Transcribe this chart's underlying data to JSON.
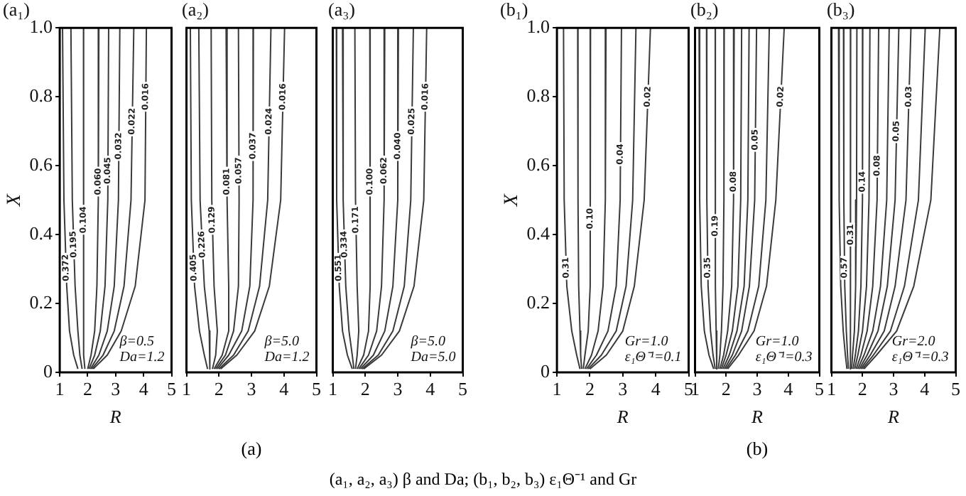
{
  "chart_data": [
    {
      "type": "line",
      "title": "(a₁)",
      "xlabel": "R",
      "ylabel": "X",
      "xlim": [
        1,
        5
      ],
      "xticks": [
        1,
        2,
        3,
        4,
        5
      ],
      "ylim": [
        0,
        1
      ],
      "yticks": [
        0,
        0.2,
        0.4,
        0.6,
        0.8,
        {
          "value": 1,
          "label": "1.0"
        }
      ],
      "grid": false,
      "legend": false,
      "marker": "none",
      "line_style": "solid",
      "annotations": [
        "β=0.5",
        "Da=1.2"
      ],
      "series": [
        {
          "name": "0.372",
          "color": "#3a3a3a",
          "x": [
            1.1,
            1.15,
            1.25,
            1.35,
            1.5,
            1.65
          ],
          "values": [
            1,
            0.5,
            0.25,
            0.12,
            0.05,
            0.01
          ]
        },
        {
          "name": "0.195",
          "color": "#3a3a3a",
          "x": [
            1.4,
            1.45,
            1.55,
            1.65,
            1.72,
            1.8
          ],
          "values": [
            1,
            0.5,
            0.25,
            0.12,
            0.05,
            0.01
          ]
        },
        {
          "name": "0.104",
          "color": "#3a3a3a",
          "x": [
            1.85,
            1.85,
            1.86,
            1.86,
            1.85,
            1.9
          ],
          "values": [
            1,
            0.5,
            0.25,
            0.12,
            0.05,
            0.01
          ]
        },
        {
          "name": "0.060",
          "color": "#3a3a3a",
          "x": [
            2.4,
            2.38,
            2.33,
            2.25,
            2.12,
            2.0
          ],
          "values": [
            1,
            0.5,
            0.25,
            0.12,
            0.05,
            0.01
          ]
        },
        {
          "name": "0.045",
          "color": "#3a3a3a",
          "x": [
            2.75,
            2.72,
            2.62,
            2.45,
            2.25,
            2.05
          ],
          "values": [
            1,
            0.5,
            0.25,
            0.12,
            0.05,
            0.01
          ]
        },
        {
          "name": "0.032",
          "color": "#3a3a3a",
          "x": [
            3.15,
            3.1,
            2.95,
            2.7,
            2.4,
            2.1
          ],
          "values": [
            1,
            0.5,
            0.25,
            0.12,
            0.05,
            0.01
          ]
        },
        {
          "name": "0.022",
          "color": "#3a3a3a",
          "x": [
            3.65,
            3.55,
            3.3,
            2.95,
            2.55,
            2.15
          ],
          "values": [
            1,
            0.5,
            0.25,
            0.12,
            0.05,
            0.01
          ]
        },
        {
          "name": "0.016",
          "color": "#3a3a3a",
          "x": [
            4.1,
            4.05,
            3.7,
            3.2,
            2.7,
            2.2
          ],
          "values": [
            1,
            0.5,
            0.25,
            0.12,
            0.05,
            0.01
          ]
        }
      ]
    },
    {
      "type": "line",
      "title": "(a₂)",
      "xlim": [
        1,
        5
      ],
      "xticks": [
        1,
        2,
        3,
        4,
        5
      ],
      "ylim": [
        0,
        1
      ],
      "tick_labels": "x",
      "grid": false,
      "legend": false,
      "marker": "none",
      "line_style": "solid",
      "annotations": [
        "β=5.0",
        "Da=1.2",
        "(a)",
        "(a₁, a₂, a₃) β and Da; (b₁, b₂, b₃) ε₁Θ⁻¹ and Gr"
      ],
      "series": [
        {
          "name": "0.405",
          "color": "#3a3a3a",
          "x": [
            1.12,
            1.15,
            1.25,
            1.4,
            1.55,
            1.65
          ],
          "values": [
            1,
            0.5,
            0.25,
            0.12,
            0.05,
            0.01
          ]
        },
        {
          "name": "0.226",
          "color": "#3a3a3a",
          "x": [
            1.38,
            1.42,
            1.55,
            1.7,
            1.72,
            1.72
          ],
          "values": [
            1,
            0.5,
            0.25,
            0.12,
            0.05,
            0.01
          ]
        },
        {
          "name": "0.129",
          "color": "#3a3a3a",
          "x": [
            1.76,
            1.78,
            1.85,
            1.95,
            1.9,
            1.8
          ],
          "values": [
            1,
            0.5,
            0.25,
            0.12,
            0.05,
            0.01
          ]
        },
        {
          "name": "0.081",
          "color": "#3a3a3a",
          "x": [
            2.22,
            2.25,
            2.3,
            2.3,
            2.1,
            1.85
          ],
          "values": [
            1,
            0.5,
            0.25,
            0.12,
            0.05,
            0.01
          ]
        },
        {
          "name": "0.057",
          "color": "#3a3a3a",
          "x": [
            2.6,
            2.62,
            2.6,
            2.45,
            2.2,
            1.9
          ],
          "values": [
            1,
            0.5,
            0.25,
            0.12,
            0.05,
            0.01
          ]
        },
        {
          "name": "0.037",
          "color": "#3a3a3a",
          "x": [
            3.06,
            3.05,
            2.95,
            2.7,
            2.3,
            1.95
          ],
          "values": [
            1,
            0.5,
            0.25,
            0.12,
            0.05,
            0.01
          ]
        },
        {
          "name": "0.024",
          "color": "#3a3a3a",
          "x": [
            3.6,
            3.5,
            3.25,
            2.9,
            2.45,
            2.0
          ],
          "values": [
            1,
            0.5,
            0.25,
            0.12,
            0.05,
            0.01
          ]
        },
        {
          "name": "0.016",
          "color": "#3a3a3a",
          "x": [
            4.02,
            3.9,
            3.55,
            3.1,
            2.55,
            2.05
          ],
          "values": [
            1,
            0.5,
            0.25,
            0.12,
            0.05,
            0.01
          ]
        }
      ]
    },
    {
      "type": "line",
      "title": "(a₃)",
      "xlim": [
        1,
        5
      ],
      "xticks": [
        1,
        2,
        3,
        4,
        5
      ],
      "ylim": [
        0,
        1
      ],
      "tick_labels": "x",
      "grid": false,
      "legend": false,
      "marker": "none",
      "line_style": "solid",
      "annotations": [
        "β=5.0",
        "Da=5.0"
      ],
      "series": [
        {
          "name": "0.551",
          "color": "#3a3a3a",
          "x": [
            1.11,
            1.12,
            1.2,
            1.3,
            1.45,
            1.6
          ],
          "values": [
            1,
            0.5,
            0.25,
            0.12,
            0.05,
            0.01
          ]
        },
        {
          "name": "0.334",
          "color": "#3a3a3a",
          "x": [
            1.3,
            1.32,
            1.4,
            1.5,
            1.6,
            1.65
          ],
          "values": [
            1,
            0.5,
            0.25,
            0.12,
            0.05,
            0.01
          ]
        },
        {
          "name": "0.171",
          "color": "#3a3a3a",
          "x": [
            1.68,
            1.7,
            1.75,
            1.8,
            1.75,
            1.7
          ],
          "values": [
            1,
            0.5,
            0.25,
            0.12,
            0.05,
            0.01
          ]
        },
        {
          "name": "0.100",
          "color": "#3a3a3a",
          "x": [
            2.14,
            2.15,
            2.15,
            2.1,
            1.95,
            1.75
          ],
          "values": [
            1,
            0.5,
            0.25,
            0.12,
            0.05,
            0.01
          ]
        },
        {
          "name": "0.062",
          "color": "#3a3a3a",
          "x": [
            2.6,
            2.58,
            2.5,
            2.35,
            2.1,
            1.8
          ],
          "values": [
            1,
            0.5,
            0.25,
            0.12,
            0.05,
            0.01
          ]
        },
        {
          "name": "0.040",
          "color": "#3a3a3a",
          "x": [
            3.02,
            3.0,
            2.85,
            2.6,
            2.25,
            1.85
          ],
          "values": [
            1,
            0.5,
            0.25,
            0.12,
            0.05,
            0.01
          ]
        },
        {
          "name": "0.025",
          "color": "#3a3a3a",
          "x": [
            3.48,
            3.4,
            3.2,
            2.85,
            2.4,
            1.9
          ],
          "values": [
            1,
            0.5,
            0.25,
            0.12,
            0.05,
            0.01
          ]
        },
        {
          "name": "0.016",
          "color": "#3a3a3a",
          "x": [
            3.89,
            3.8,
            3.5,
            3.05,
            2.5,
            1.95
          ],
          "values": [
            1,
            0.5,
            0.25,
            0.12,
            0.05,
            0.01
          ]
        }
      ]
    },
    {
      "type": "line",
      "title": "(b₁)",
      "xlabel": "R",
      "ylabel": "X",
      "xlim": [
        1,
        5
      ],
      "xticks": [
        1,
        2,
        3,
        4,
        5
      ],
      "ylim": [
        0,
        1
      ],
      "yticks": [
        0,
        0.2,
        0.4,
        0.6,
        0.8,
        {
          "value": 1,
          "label": "1.0"
        }
      ],
      "grid": false,
      "legend": false,
      "marker": "none",
      "line_style": "solid",
      "annotations": [
        "Gr=1.0",
        "ε₁Θ⁻¹=0.1"
      ],
      "series": [
        {
          "name": "0.31",
          "color": "#3a3a3a",
          "x": [
            1.2,
            1.22,
            1.3,
            1.45,
            1.6,
            1.7
          ],
          "values": [
            1,
            0.5,
            0.25,
            0.12,
            0.05,
            0.01
          ]
        },
        {
          "color": "#3a3a3a",
          "x": [
            1.63,
            1.64,
            1.66,
            1.7,
            1.72,
            1.75
          ],
          "values": [
            1,
            0.5,
            0.25,
            0.12,
            0.05,
            0.01
          ]
        },
        {
          "name": "0.10",
          "color": "#3a3a3a",
          "x": [
            2.02,
            2.02,
            2.0,
            1.95,
            1.85,
            1.8
          ],
          "values": [
            1,
            0.5,
            0.25,
            0.12,
            0.05,
            0.01
          ]
        },
        {
          "color": "#3a3a3a",
          "x": [
            2.49,
            2.47,
            2.4,
            2.25,
            2.05,
            1.85
          ],
          "values": [
            1,
            0.5,
            0.25,
            0.12,
            0.05,
            0.01
          ]
        },
        {
          "name": "0.04",
          "color": "#3a3a3a",
          "x": [
            2.96,
            2.92,
            2.8,
            2.55,
            2.2,
            1.9
          ],
          "values": [
            1,
            0.5,
            0.25,
            0.12,
            0.05,
            0.01
          ]
        },
        {
          "color": "#3a3a3a",
          "x": [
            3.4,
            3.3,
            3.1,
            2.8,
            2.35,
            1.95
          ],
          "values": [
            1,
            0.5,
            0.25,
            0.12,
            0.05,
            0.01
          ]
        },
        {
          "name": "0.02",
          "color": "#3a3a3a",
          "x": [
            3.84,
            3.65,
            3.35,
            3.0,
            2.5,
            2.0
          ],
          "values": [
            1,
            0.5,
            0.25,
            0.12,
            0.05,
            0.01
          ]
        }
      ]
    },
    {
      "type": "line",
      "title": "(b₂)",
      "xlabel": "R",
      "xlim": [
        1,
        5
      ],
      "xticks": [
        1,
        2,
        3,
        4,
        5
      ],
      "ylim": [
        0,
        1
      ],
      "tick_labels": "x",
      "grid": false,
      "legend": false,
      "marker": "none",
      "line_style": "solid",
      "annotations": [
        "Gr=1.0",
        "ε₁Θ⁻¹=0.3",
        "(b)"
      ],
      "series": [
        {
          "color": "#3a3a3a",
          "x": [
            1.13,
            1.15,
            1.2,
            1.3,
            1.45,
            1.6
          ],
          "values": [
            1,
            0.5,
            0.25,
            0.12,
            0.05,
            0.01
          ]
        },
        {
          "name": "0.35",
          "color": "#3a3a3a",
          "x": [
            1.37,
            1.38,
            1.42,
            1.5,
            1.58,
            1.65
          ],
          "values": [
            1,
            0.5,
            0.25,
            0.12,
            0.05,
            0.01
          ]
        },
        {
          "name": "0.19",
          "color": "#3a3a3a",
          "x": [
            1.65,
            1.65,
            1.66,
            1.68,
            1.7,
            1.7
          ],
          "values": [
            1,
            0.5,
            0.25,
            0.12,
            0.05,
            0.01
          ]
        },
        {
          "color": "#3a3a3a",
          "x": [
            1.94,
            1.93,
            1.9,
            1.85,
            1.8,
            1.75
          ],
          "values": [
            1,
            0.5,
            0.25,
            0.12,
            0.05,
            0.01
          ]
        },
        {
          "name": "0.08",
          "color": "#3a3a3a",
          "x": [
            2.26,
            2.24,
            2.18,
            2.05,
            1.92,
            1.8
          ],
          "values": [
            1,
            0.5,
            0.25,
            0.12,
            0.05,
            0.01
          ]
        },
        {
          "color": "#3a3a3a",
          "x": [
            2.5,
            2.47,
            2.38,
            2.2,
            2.0,
            1.85
          ],
          "values": [
            1,
            0.5,
            0.25,
            0.12,
            0.05,
            0.01
          ]
        },
        {
          "color": "#3a3a3a",
          "x": [
            2.74,
            2.7,
            2.58,
            2.35,
            2.1,
            1.9
          ],
          "values": [
            1,
            0.5,
            0.25,
            0.12,
            0.05,
            0.01
          ]
        },
        {
          "name": "0.05",
          "color": "#3a3a3a",
          "x": [
            2.98,
            2.92,
            2.75,
            2.5,
            2.2,
            1.95
          ],
          "values": [
            1,
            0.5,
            0.25,
            0.12,
            0.05,
            0.01
          ]
        },
        {
          "color": "#3a3a3a",
          "x": [
            3.39,
            3.28,
            3.05,
            2.7,
            2.3,
            2.0
          ],
          "values": [
            1,
            0.5,
            0.25,
            0.12,
            0.05,
            0.01
          ]
        },
        {
          "name": "0.02",
          "color": "#3a3a3a",
          "x": [
            3.87,
            3.6,
            3.3,
            2.9,
            2.4,
            2.05
          ],
          "values": [
            1,
            0.5,
            0.25,
            0.12,
            0.05,
            0.01
          ]
        }
      ]
    },
    {
      "type": "line",
      "title": "(b₃)",
      "xlabel": "R",
      "xlim": [
        1,
        5
      ],
      "xticks": [
        1,
        2,
        3,
        4,
        5
      ],
      "ylim": [
        0,
        1
      ],
      "tick_labels": "x",
      "grid": false,
      "legend": false,
      "marker": "none",
      "line_style": "solid",
      "annotations": [
        "Gr=2.0",
        "ε₁Θ⁻¹=0.3"
      ],
      "series": [
        {
          "color": "#3a3a3a",
          "x": [
            1.23,
            1.25,
            1.3,
            1.38,
            1.45,
            1.5
          ],
          "values": [
            1,
            0.5,
            0.25,
            0.12,
            0.05,
            0.01
          ]
        },
        {
          "name": "0.57",
          "color": "#3a3a3a",
          "x": [
            1.39,
            1.4,
            1.43,
            1.48,
            1.52,
            1.55
          ],
          "values": [
            1,
            0.5,
            0.25,
            0.12,
            0.05,
            0.01
          ]
        },
        {
          "name": "0.31",
          "color": "#3a3a3a",
          "x": [
            1.62,
            1.62,
            1.62,
            1.62,
            1.6,
            1.6
          ],
          "values": [
            1,
            0.5,
            0.25,
            0.12,
            0.05,
            0.01
          ]
        },
        {
          "color": "#3a3a3a",
          "x": [
            1.82,
            1.81,
            1.78,
            1.74,
            1.68,
            1.65
          ],
          "values": [
            1,
            0.5,
            0.25,
            0.12,
            0.05,
            0.01
          ]
        },
        {
          "name": "0.14",
          "color": "#3a3a3a",
          "x": [
            2.01,
            2.0,
            1.95,
            1.87,
            1.77,
            1.7
          ],
          "values": [
            1,
            0.5,
            0.25,
            0.12,
            0.05,
            0.01
          ]
        },
        {
          "color": "#3a3a3a",
          "x": [
            2.24,
            2.21,
            2.13,
            2.0,
            1.85,
            1.75
          ],
          "values": [
            1,
            0.5,
            0.25,
            0.12,
            0.05,
            0.01
          ]
        },
        {
          "name": "0.08",
          "color": "#3a3a3a",
          "x": [
            2.52,
            2.47,
            2.33,
            2.15,
            1.95,
            1.8
          ],
          "values": [
            1,
            0.5,
            0.25,
            0.12,
            0.05,
            0.01
          ]
        },
        {
          "color": "#3a3a3a",
          "x": [
            2.86,
            2.78,
            2.58,
            2.33,
            2.05,
            1.85
          ],
          "values": [
            1,
            0.5,
            0.25,
            0.12,
            0.05,
            0.01
          ]
        },
        {
          "name": "0.05",
          "color": "#3a3a3a",
          "x": [
            3.17,
            3.05,
            2.8,
            2.5,
            2.15,
            1.9
          ],
          "values": [
            1,
            0.5,
            0.25,
            0.12,
            0.05,
            0.01
          ]
        },
        {
          "name": "0.03",
          "color": "#3a3a3a",
          "x": [
            3.56,
            3.4,
            3.05,
            2.7,
            2.25,
            1.95
          ],
          "values": [
            1,
            0.5,
            0.25,
            0.12,
            0.05,
            0.01
          ]
        },
        {
          "color": "#3a3a3a",
          "x": [
            4.02,
            3.8,
            3.35,
            2.9,
            2.35,
            2.0
          ],
          "values": [
            1,
            0.5,
            0.25,
            0.12,
            0.05,
            0.01
          ]
        },
        {
          "color": "#3a3a3a",
          "x": [
            4.49,
            4.2,
            3.65,
            3.1,
            2.45,
            2.05
          ],
          "values": [
            1,
            0.5,
            0.25,
            0.12,
            0.05,
            0.01
          ]
        }
      ]
    }
  ]
}
